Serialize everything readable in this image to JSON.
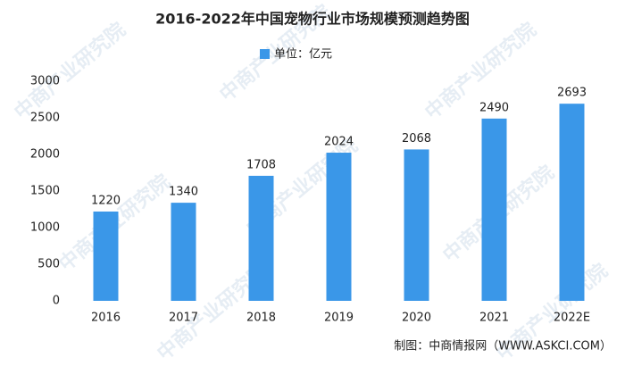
{
  "chart_data": {
    "type": "bar",
    "title": "2016-2022年中国宠物行业市场规模预测趋势图",
    "categories": [
      "2016",
      "2017",
      "2018",
      "2019",
      "2020",
      "2021",
      "2022E"
    ],
    "series": [
      {
        "name": "单位：亿元",
        "color": "#3a97e8",
        "values": [
          1220,
          1340,
          1708,
          2024,
          2068,
          2490,
          2693
        ]
      }
    ],
    "ylim": [
      0,
      3000
    ],
    "yticks": [
      0,
      500,
      1000,
      1500,
      2000,
      2500,
      3000
    ],
    "grid": false,
    "source": "制图：中商情报网（WWW.ASKCI.COM）",
    "watermark": "中商产业研究院"
  }
}
